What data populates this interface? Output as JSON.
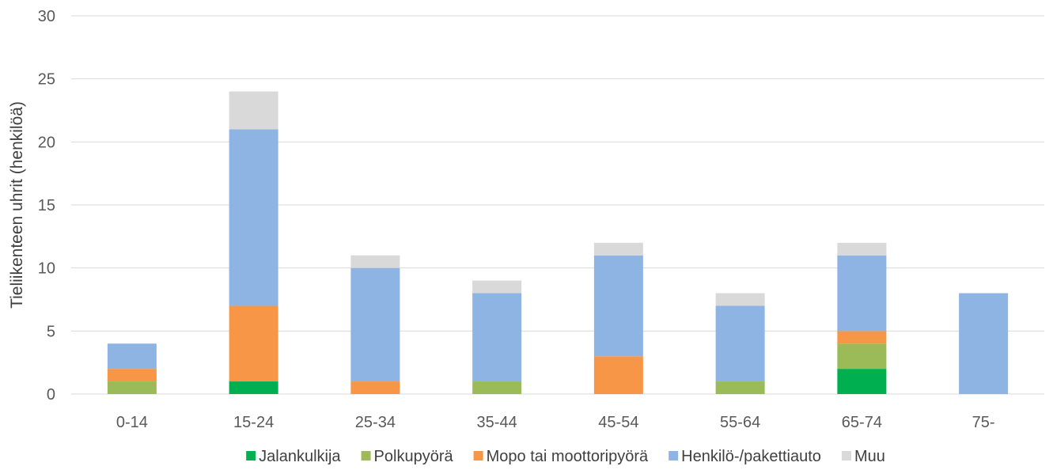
{
  "chart_data": {
    "type": "bar",
    "stacked": true,
    "ylabel": "Tieliikenteen uhrit (henkilöä)",
    "xlabel": "",
    "ylim": [
      0,
      30
    ],
    "yticks": [
      0,
      5,
      10,
      15,
      20,
      25,
      30
    ],
    "grid": true,
    "legend_position": "bottom",
    "categories": [
      "0-14",
      "15-24",
      "25-34",
      "35-44",
      "45-54",
      "55-64",
      "65-74",
      "75-"
    ],
    "series": [
      {
        "name": "Jalankulkija",
        "color": "#00b050",
        "values": [
          0,
          1,
          0,
          0,
          0,
          0,
          2,
          0
        ]
      },
      {
        "name": "Polkupyörä",
        "color": "#9bbb59",
        "values": [
          1,
          0,
          0,
          1,
          0,
          1,
          2,
          0
        ]
      },
      {
        "name": "Mopo tai moottoripyörä",
        "color": "#f79646",
        "values": [
          1,
          6,
          1,
          0,
          3,
          0,
          1,
          0
        ]
      },
      {
        "name": "Henkilö-/pakettiauto",
        "color": "#8eb4e3",
        "values": [
          2,
          14,
          9,
          7,
          8,
          6,
          6,
          8
        ]
      },
      {
        "name": "Muu",
        "color": "#d9d9d9",
        "values": [
          0,
          3,
          1,
          1,
          1,
          1,
          1,
          0
        ]
      }
    ]
  }
}
